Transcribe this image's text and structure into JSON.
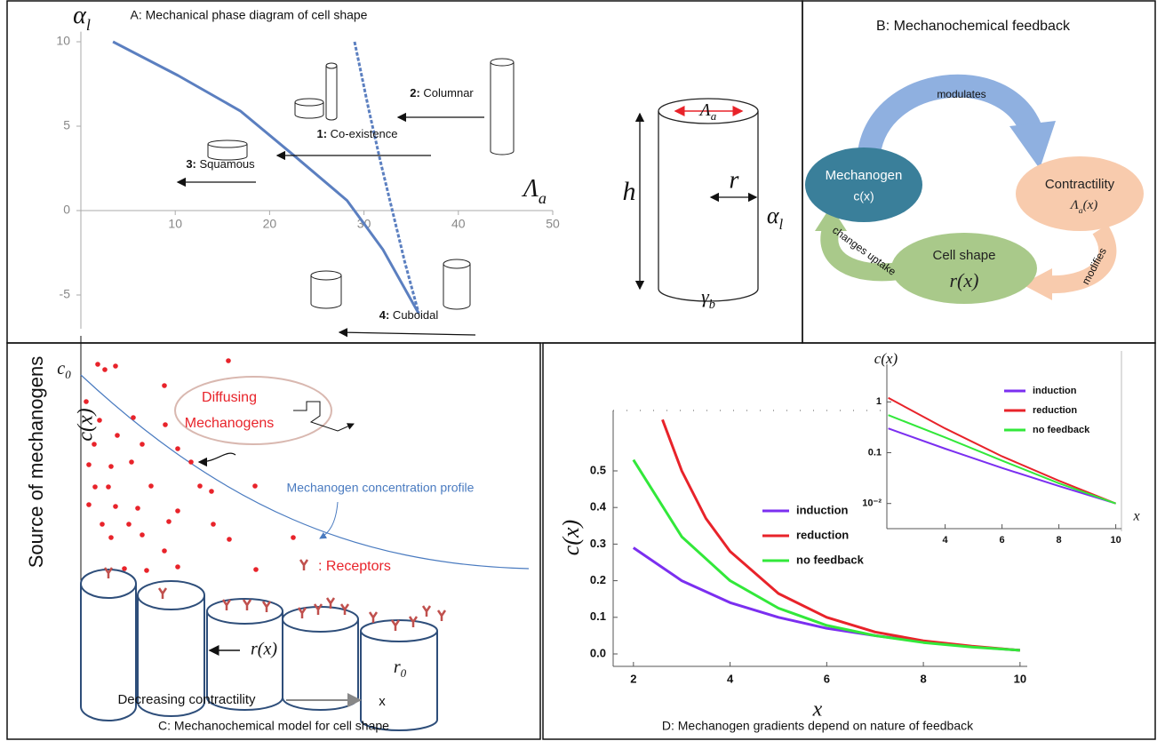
{
  "chart_data": [
    {
      "type": "line",
      "title": "A: Mechanical phase diagram of cell shape",
      "xlabel": "Λa",
      "ylabel": "αl",
      "axes": "origin",
      "xlim": [
        0,
        50
      ],
      "ylim": [
        -7,
        10.6
      ],
      "xticks": [
        10,
        20,
        30,
        40,
        50
      ],
      "yticks": [
        -5,
        0,
        5,
        10
      ],
      "series": [
        {
          "color": "#5b7fc0",
          "dash": false,
          "x": [
            3.4,
            10.3,
            16.9,
            22.5,
            28.2,
            32,
            35.8
          ],
          "values": [
            10,
            8,
            5.9,
            3.3,
            0.6,
            -2.3,
            -6.1
          ]
        },
        {
          "color": "#5b7fc0",
          "dash": true,
          "x": [
            29,
            30.5,
            31.7,
            33,
            34.3,
            35.8
          ],
          "values": [
            10,
            6,
            3,
            0,
            -3,
            -6.1
          ]
        }
      ],
      "annotations": [
        "2: Columnar",
        "1: Co-existence",
        "3: Squamous",
        "4: Cuboidal"
      ]
    },
    {
      "type": "line",
      "title": "D:  Mechanogen gradients  depend on nature of feedback",
      "xlabel": "x",
      "ylabel": "c(x)",
      "axes": "frame",
      "xlim": [
        1.58,
        10.15
      ],
      "ylim": [
        -0.034,
        0.665
      ],
      "xticks": [
        2,
        4,
        6,
        8,
        10
      ],
      "yticks": [
        {
          "value": 0,
          "label": "0.0"
        },
        0.1,
        0.2,
        0.3,
        0.4,
        0.5
      ],
      "legend": "right",
      "series": [
        {
          "name": "induction",
          "color": "#7b2ff0",
          "x": [
            2,
            3,
            4,
            5,
            6,
            7,
            8,
            9,
            10
          ],
          "values": [
            0.29,
            0.2,
            0.14,
            0.1,
            0.07,
            0.05,
            0.033,
            0.02,
            0.01
          ]
        },
        {
          "name": "reduction",
          "color": "#e8232a",
          "x": [
            2.6,
            3,
            3.5,
            4,
            5,
            6,
            7,
            8,
            9,
            10
          ],
          "values": [
            0.64,
            0.5,
            0.37,
            0.28,
            0.165,
            0.1,
            0.06,
            0.036,
            0.021,
            0.01
          ]
        },
        {
          "name": "no feedback",
          "color": "#32e83a",
          "x": [
            2,
            3,
            4,
            5,
            6,
            7,
            8,
            9,
            10
          ],
          "values": [
            0.53,
            0.32,
            0.2,
            0.125,
            0.078,
            0.05,
            0.031,
            0.019,
            0.01
          ]
        }
      ]
    },
    {
      "type": "line",
      "xlabel": "x",
      "ylabel": "c(x)",
      "axes": "frame",
      "log_y": true,
      "xlim": [
        1.95,
        10.2
      ],
      "ylim": [
        0.0032,
        5.5
      ],
      "xticks": [
        4,
        6,
        8,
        10
      ],
      "yticks": [
        {
          "value": 0.01,
          "label": "10⁻²"
        },
        0.1,
        1
      ],
      "legend": "upper right",
      "series": [
        {
          "name": "induction",
          "color": "#7b2ff0",
          "x": [
            2,
            4,
            6,
            8,
            10
          ],
          "values": [
            0.3,
            0.12,
            0.05,
            0.022,
            0.01
          ]
        },
        {
          "name": "reduction",
          "color": "#e8232a",
          "x": [
            2,
            4,
            6,
            8,
            10
          ],
          "values": [
            1.2,
            0.3,
            0.085,
            0.028,
            0.01
          ]
        },
        {
          "name": "no feedback",
          "color": "#32e83a",
          "x": [
            2,
            4,
            6,
            8,
            10
          ],
          "values": [
            0.55,
            0.2,
            0.07,
            0.025,
            0.01
          ]
        }
      ]
    }
  ],
  "panel_a_diagram": {
    "labels": [
      "Λa",
      "h",
      "r",
      "αl",
      "γb"
    ]
  },
  "panel_b": {
    "title": "B:   Mechanochemical feedback",
    "nodes": [
      {
        "label": "Mechanogen",
        "sub": "c(x)"
      },
      {
        "label": "Contractility",
        "sub": "Λa(x)"
      },
      {
        "label": "Cell shape",
        "sub": "r(x)"
      }
    ],
    "edges": [
      "modulates",
      "modifies",
      "changes uptake"
    ]
  },
  "panel_c": {
    "y_title": "Source of mechanogens",
    "ylabel": "c(x)",
    "c0": "c0",
    "bubble": [
      "Diffusing",
      "Mechanogens"
    ],
    "profile": "Mechanogen concentration profile",
    "receptors": ": Receptors",
    "rx": "r(x)",
    "r0": "r0",
    "axis_text": "Decreasing contractility",
    "x": "x",
    "caption": "C:  Mechanochemical model for cell shape"
  }
}
